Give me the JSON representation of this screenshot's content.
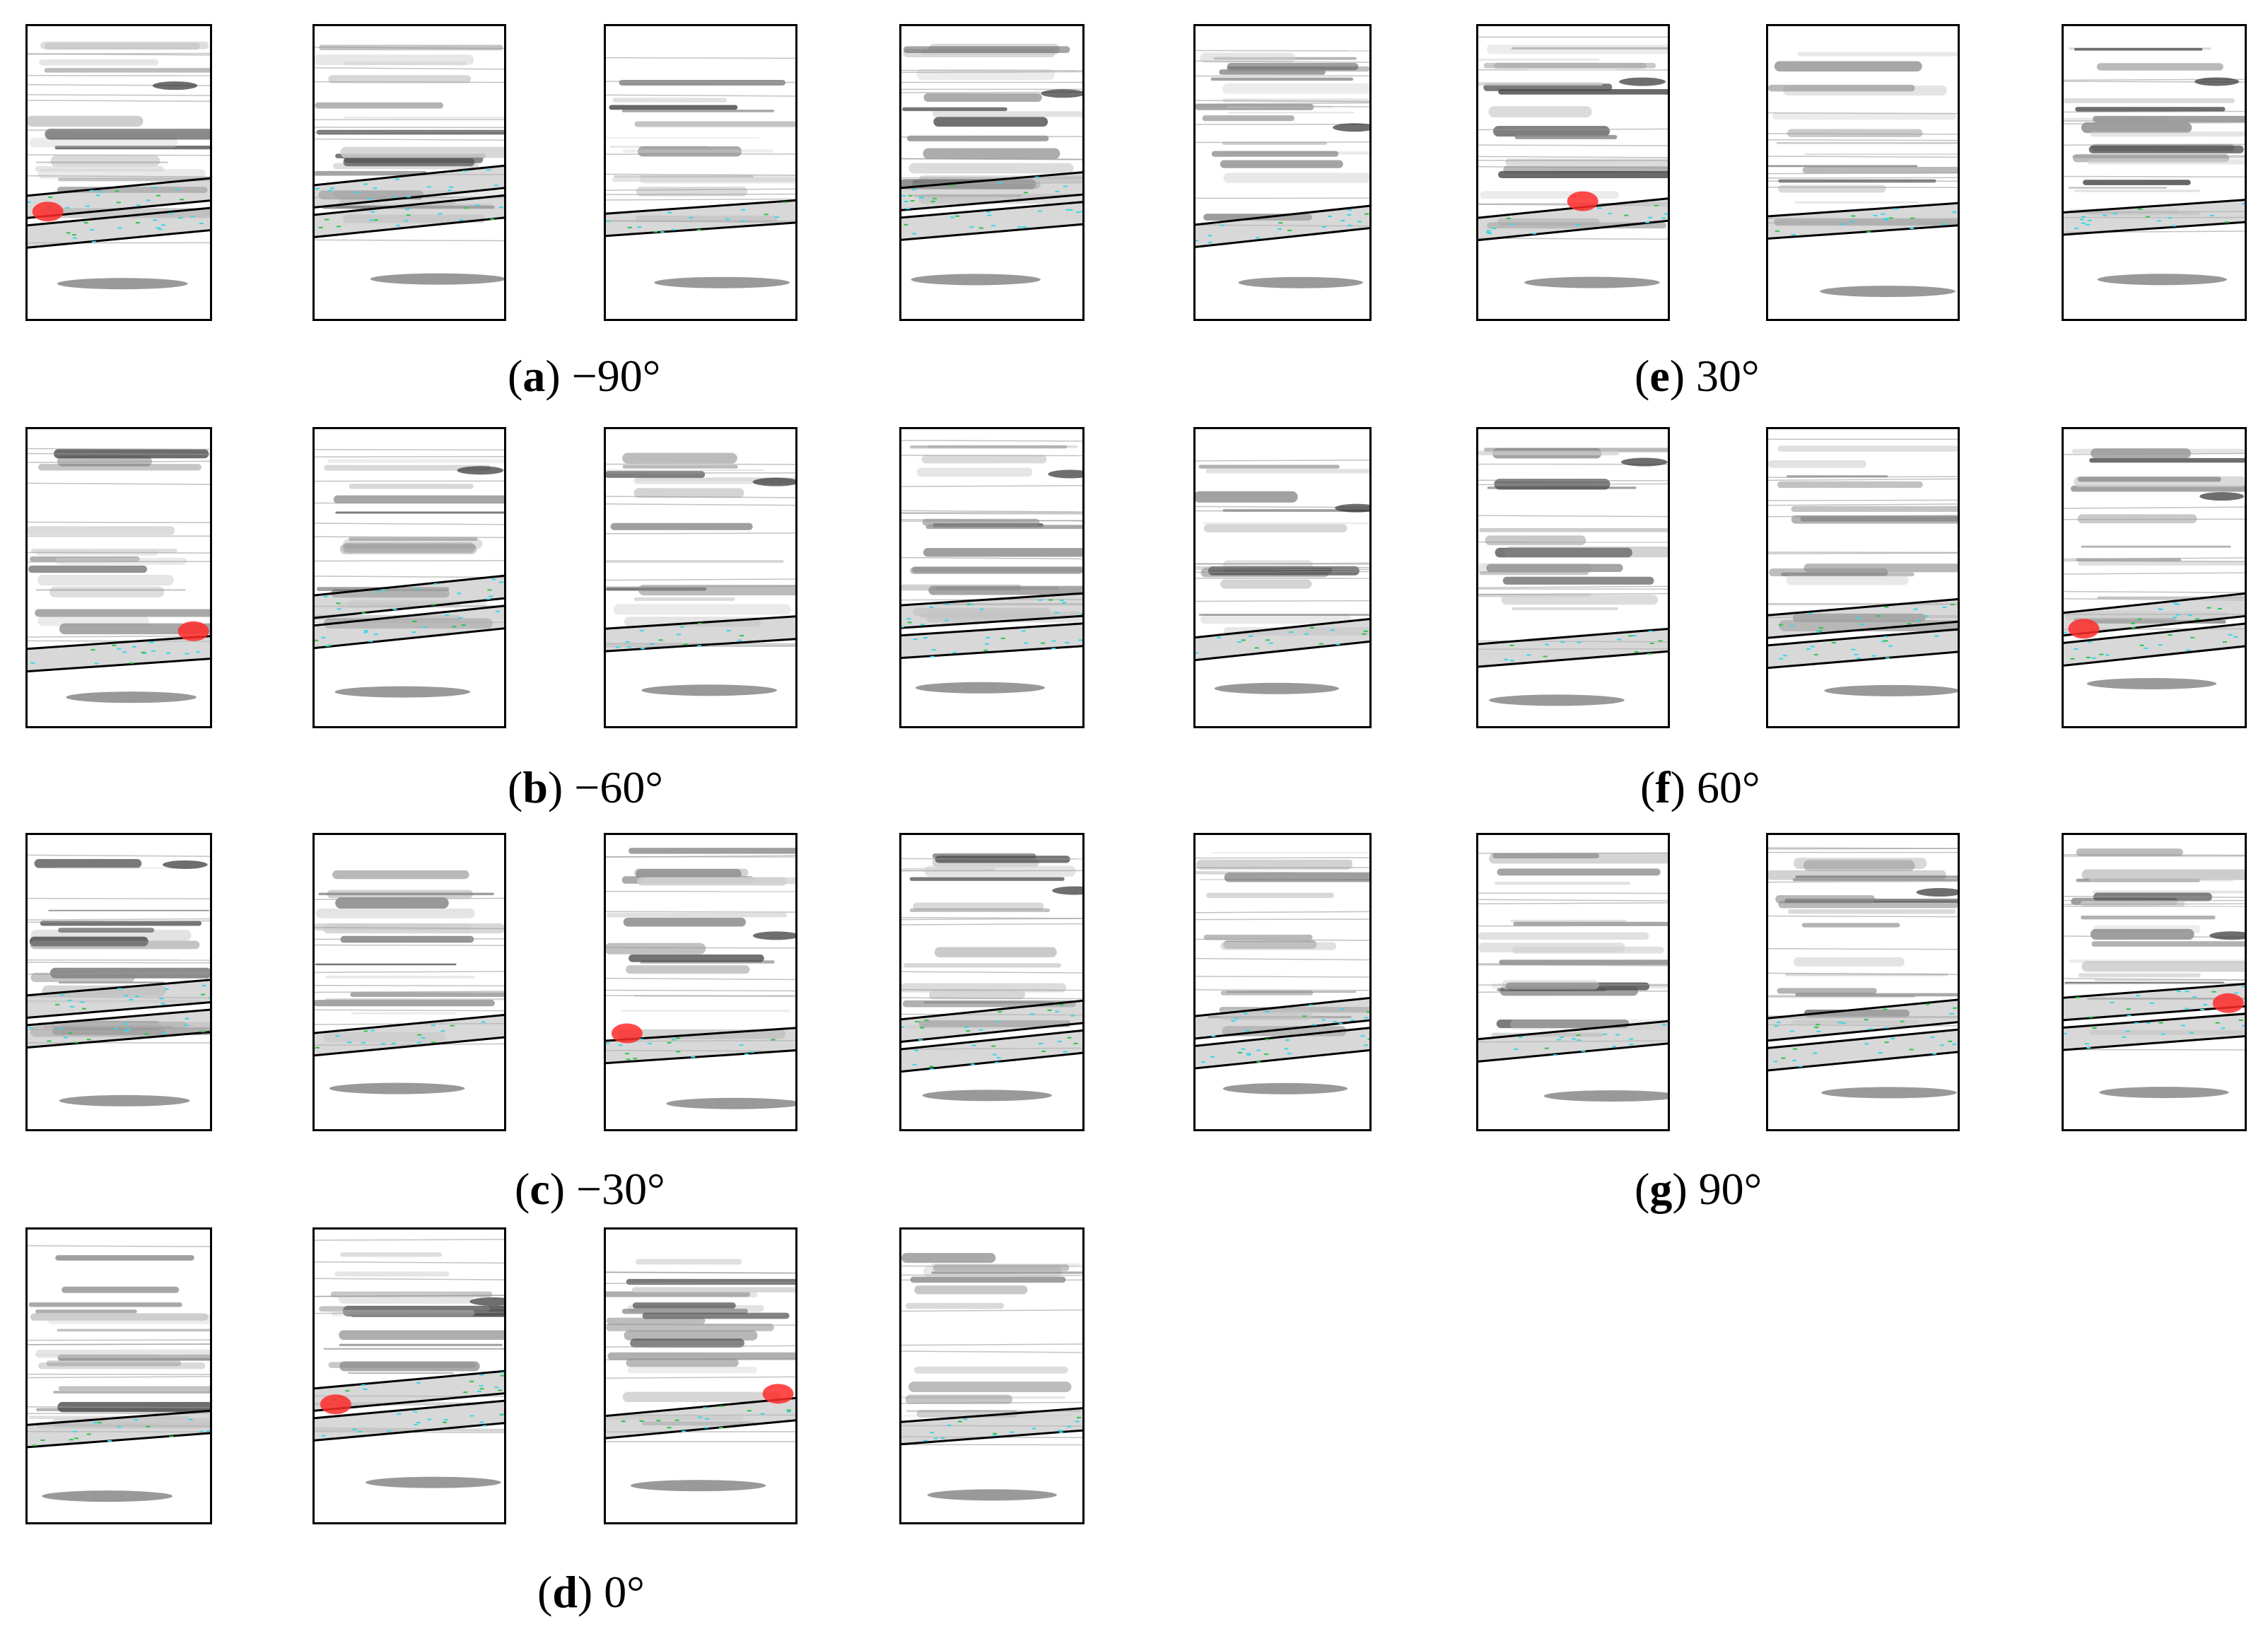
{
  "groups": [
    {
      "letter": "a",
      "angle": "−90°"
    },
    {
      "letter": "b",
      "angle": "−60°"
    },
    {
      "letter": "c",
      "angle": "−30°"
    },
    {
      "letter": "d",
      "angle": "0°"
    },
    {
      "letter": "e",
      "angle": "30°"
    },
    {
      "letter": "f",
      "angle": "60°"
    },
    {
      "letter": "g",
      "angle": "90°"
    }
  ],
  "colors": {
    "frame": "#000000",
    "streak_dark": "#4a4a4a",
    "streak_mid": "#8a8a8a",
    "streak_light": "#cfcfcf",
    "highlight_red": "#ff2a2a",
    "tracer_cyan": "#39d6e6",
    "tracer_green": "#2ec24a"
  }
}
